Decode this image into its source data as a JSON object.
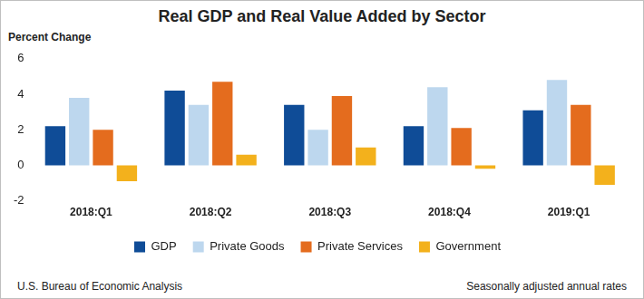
{
  "chart_data": {
    "type": "bar",
    "title": "Real GDP and Real Value Added by Sector",
    "y_label": "Percent Change",
    "source": "U.S. Bureau of Economic Analysis",
    "note": "Seasonally adjusted annual rates",
    "categories": [
      "2018:Q1",
      "2018:Q2",
      "2018:Q3",
      "2018:Q4",
      "2019:Q1"
    ],
    "series": [
      {
        "name": "GDP",
        "color": "#0f4c97",
        "values": [
          2.2,
          4.2,
          3.4,
          2.2,
          3.1
        ]
      },
      {
        "name": "Private Goods",
        "color": "#bdd7ee",
        "values": [
          3.8,
          3.4,
          2.0,
          4.4,
          4.8
        ]
      },
      {
        "name": "Private Services",
        "color": "#e46c1e",
        "values": [
          2.0,
          4.7,
          3.9,
          2.1,
          3.4
        ]
      },
      {
        "name": "Government",
        "color": "#f3b11c",
        "values": [
          -0.9,
          0.6,
          1.0,
          -0.2,
          -1.1
        ]
      }
    ],
    "ylim": [
      -2,
      6
    ],
    "yticks": [
      -2,
      0,
      2,
      4,
      6
    ],
    "grid": false,
    "legend": "bottom"
  }
}
